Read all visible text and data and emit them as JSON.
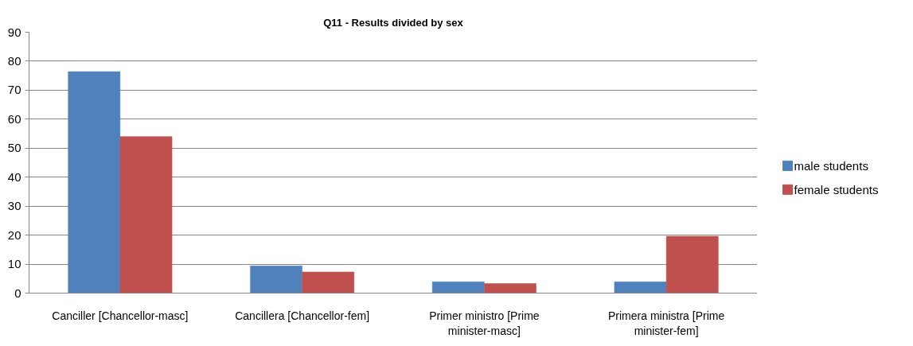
{
  "chart_data": {
    "type": "bar",
    "title": "Q11 - Results divided by sex",
    "categories": [
      "Canciller [Chancellor-masc]",
      "Cancillera [Chancellor-fem]",
      "Primer ministro [Prime minister-masc]",
      "Primera ministra [Prime minister-fem]"
    ],
    "series": [
      {
        "name": "male students",
        "color": "#4f81bd",
        "values": [
          76.4,
          9.4,
          3.9,
          3.9
        ]
      },
      {
        "name": "female students",
        "color": "#c0504d",
        "values": [
          54.0,
          7.3,
          3.3,
          19.6
        ]
      }
    ],
    "ylim": [
      0,
      90
    ],
    "yticks": [
      0,
      10,
      20,
      30,
      40,
      50,
      60,
      70,
      80,
      90
    ],
    "grid": "y",
    "legend": "right"
  }
}
